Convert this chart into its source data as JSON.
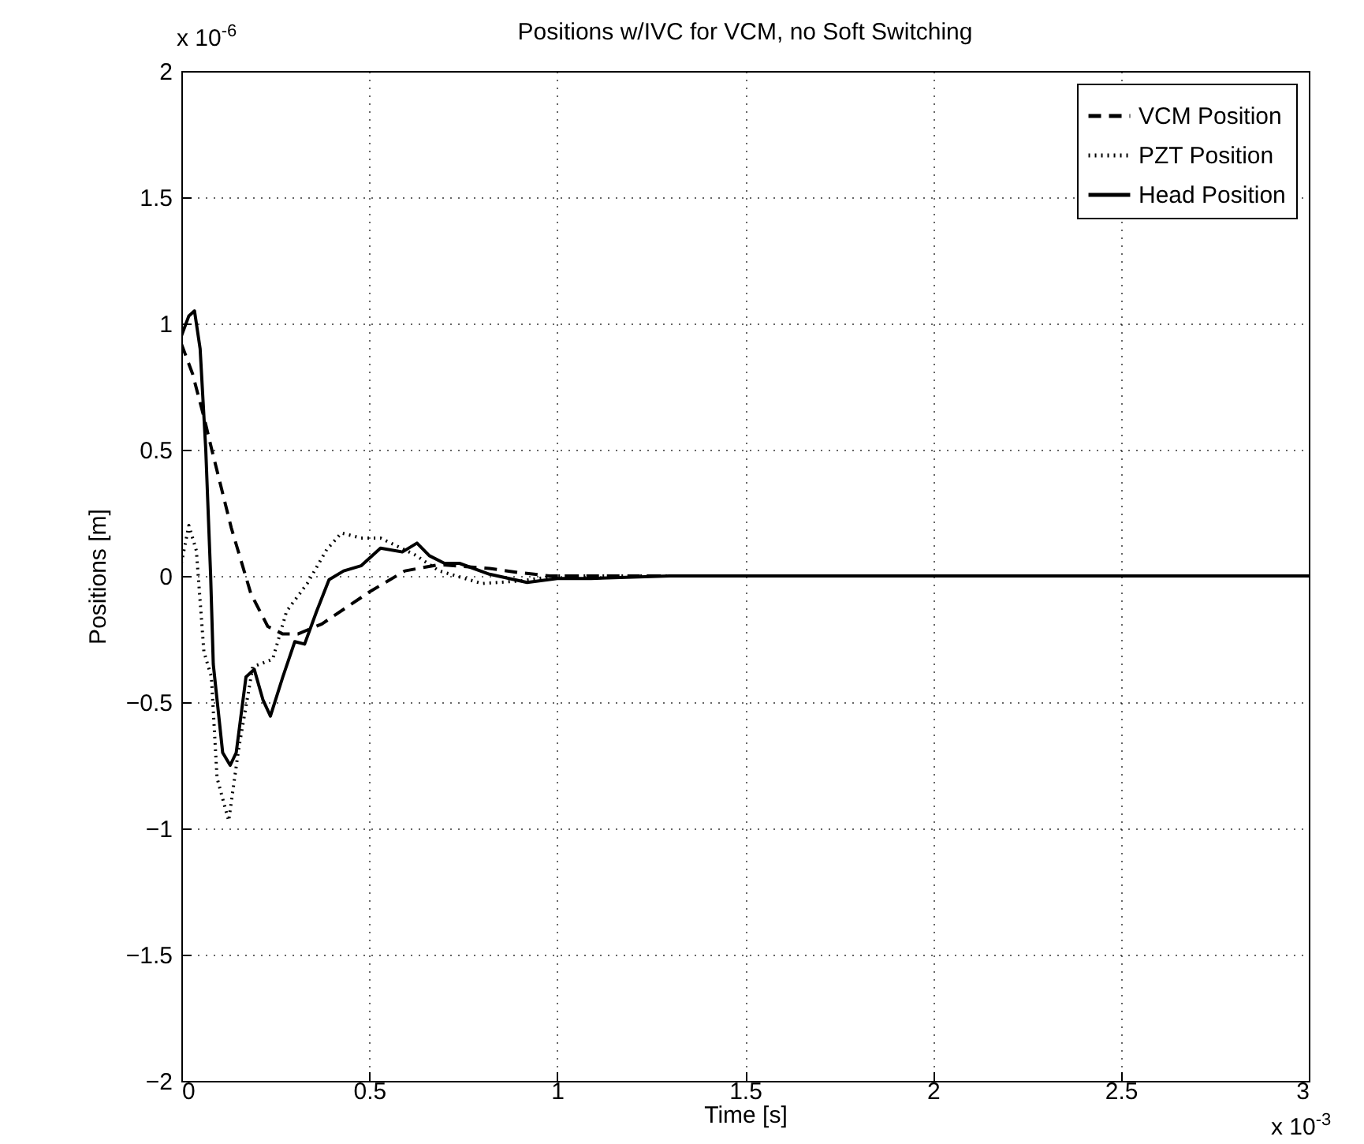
{
  "chart_data": {
    "type": "line",
    "title": "Positions w/IVC for VCM, no Soft Switching",
    "xlabel": "Time [s]",
    "ylabel": "Positions [m]",
    "annotations": [
      "x 10$^{-6}$",
      "x 10$^{-3}$"
    ],
    "xlim": [
      0,
      3
    ],
    "xticks": [
      0,
      0.5,
      1,
      1.5,
      2,
      2.5,
      3
    ],
    "ylim": [
      -2,
      2
    ],
    "yticks": [
      -2,
      -1.5,
      -1,
      -0.5,
      0,
      0.5,
      1,
      1.5,
      2
    ],
    "grid": true,
    "legend": "top right",
    "series": [
      {
        "name": "VCM Position",
        "color": "#000000",
        "line_style": "dashed",
        "x": [
          0,
          0.03,
          0.06,
          0.081,
          0.133,
          0.185,
          0.23,
          0.27,
          0.31,
          0.374,
          0.504,
          0.595,
          0.686,
          0.82,
          0.9,
          0.98,
          1.05,
          1.5,
          2,
          2.5,
          3
        ],
        "values": [
          0.92,
          0.8,
          0.63,
          0.5,
          0.19,
          -0.07,
          -0.2,
          -0.23,
          -0.23,
          -0.19,
          -0.06,
          0.02,
          0.045,
          0.03,
          0.013,
          0,
          0,
          0,
          0,
          0,
          0
        ]
      },
      {
        "name": "PZT Position",
        "color": "#000000",
        "line_style": "dotted",
        "x": [
          0,
          0.02,
          0.04,
          0.06,
          0.08,
          0.095,
          0.126,
          0.152,
          0.19,
          0.243,
          0.28,
          0.335,
          0.387,
          0.426,
          0.478,
          0.53,
          0.62,
          0.686,
          0.8,
          0.9,
          1.0,
          1.5,
          2,
          2.5,
          3
        ],
        "values": [
          0.05,
          0.2,
          0.1,
          -0.3,
          -0.4,
          -0.8,
          -0.97,
          -0.69,
          -0.36,
          -0.33,
          -0.14,
          -0.03,
          0.105,
          0.17,
          0.15,
          0.15,
          0.085,
          0.02,
          -0.03,
          -0.02,
          0,
          0,
          0,
          0,
          0
        ]
      },
      {
        "name": "Head Position",
        "color": "#000000",
        "line_style": "solid",
        "x": [
          0,
          0.02,
          0.035,
          0.05,
          0.065,
          0.078,
          0.085,
          0.11,
          0.13,
          0.146,
          0.172,
          0.194,
          0.217,
          0.237,
          0.27,
          0.302,
          0.328,
          0.36,
          0.393,
          0.432,
          0.478,
          0.53,
          0.588,
          0.627,
          0.66,
          0.7,
          0.74,
          0.82,
          0.92,
          1.0,
          1.09,
          1.3,
          1.5,
          2,
          2.5,
          3
        ],
        "values": [
          0.95,
          1.03,
          1.05,
          0.9,
          0.5,
          0,
          -0.35,
          -0.7,
          -0.75,
          -0.7,
          -0.4,
          -0.37,
          -0.49,
          -0.555,
          -0.4,
          -0.26,
          -0.27,
          -0.14,
          -0.015,
          0.02,
          0.04,
          0.11,
          0.095,
          0.13,
          0.08,
          0.05,
          0.05,
          0.007,
          -0.026,
          -0.01,
          -0.01,
          0,
          0,
          0,
          0,
          0
        ]
      }
    ]
  }
}
